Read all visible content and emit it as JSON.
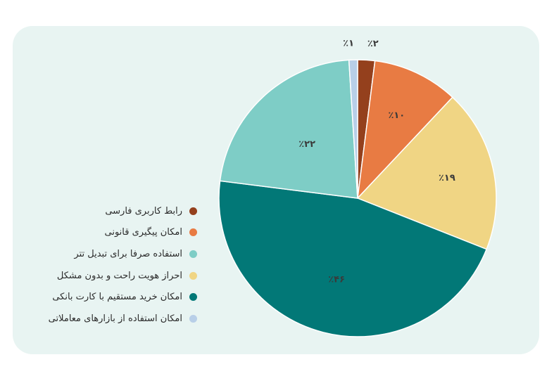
{
  "chart_data": {
    "type": "pie",
    "start_angle_deg": 0,
    "direction": "clockwise",
    "slices": [
      {
        "name": "رابط کاربری فارسی",
        "value": 2,
        "label": "٪۲",
        "color": "#94401d"
      },
      {
        "name": "امکان پیگیری قانونی",
        "value": 10,
        "label": "٪۱۰",
        "color": "#e87b43"
      },
      {
        "name": "احراز هویت راحت و بدون مشکل",
        "value": 19,
        "label": "٪۱۹",
        "color": "#f0d584"
      },
      {
        "name": "امکان خرید مستقیم با کارت بانکی",
        "value": 46,
        "label": "٪۴۶",
        "color": "#027877"
      },
      {
        "name": "استفاده صرفا برای تبدیل تتر",
        "value": 22,
        "label": "٪۲۲",
        "color": "#7ecdc6"
      },
      {
        "name": "امکان استفاده از بازارهای معاملاتی",
        "value": 1,
        "label": "٪۱",
        "color": "#b8cfe8"
      }
    ],
    "legend_position": "left",
    "legend_order": [
      "رابط کاربری فارسی",
      "امکان پیگیری قانونی",
      "استفاده صرفا برای تبدیل تتر",
      "احراز هویت راحت و بدون مشکل",
      "امکان خرید مستقیم با کارت بانکی",
      "امکان استفاده از بازارهای معاملاتی"
    ]
  }
}
